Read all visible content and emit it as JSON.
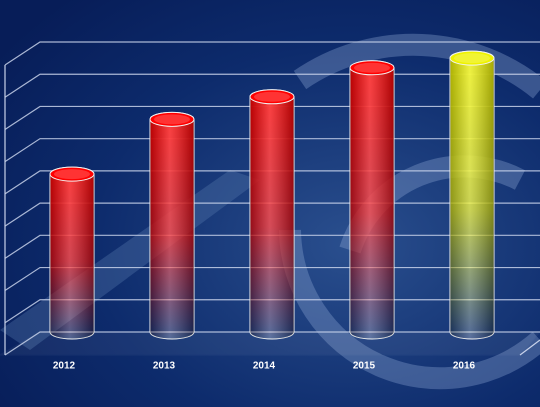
{
  "chart_data": {
    "type": "bar",
    "categories": [
      "2012",
      "2013",
      "2014",
      "2015",
      "2016"
    ],
    "values": [
      4.9,
      6.6,
      7.3,
      8.2,
      8.5
    ],
    "colors": [
      "#ff0000",
      "#ff0000",
      "#ff0000",
      "#ff0000",
      "#eef200"
    ],
    "ylim": [
      0,
      9
    ],
    "yticks": [
      0,
      1,
      2,
      3,
      4,
      5,
      6,
      7,
      8,
      9
    ],
    "grid": true
  }
}
